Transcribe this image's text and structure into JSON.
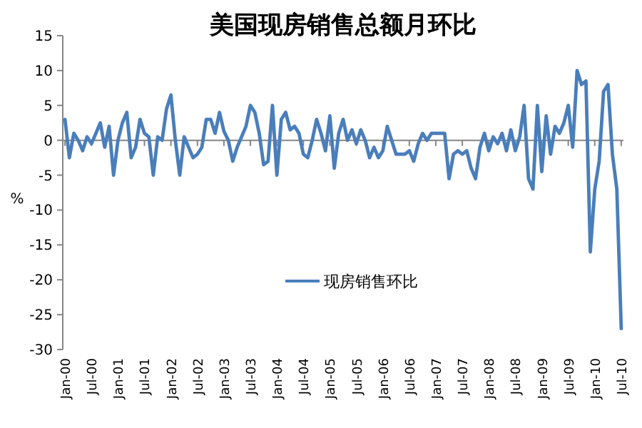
{
  "chart_data": {
    "type": "line",
    "title": "美国现房销售总额月环比",
    "ylabel": "%",
    "categories": [
      "Jan-00",
      null,
      null,
      null,
      null,
      null,
      "Jul-00",
      null,
      null,
      null,
      null,
      null,
      "Jan-01",
      null,
      null,
      null,
      null,
      null,
      "Jul-01",
      null,
      null,
      null,
      null,
      null,
      "Jan-02",
      null,
      null,
      null,
      null,
      null,
      "Jul-02",
      null,
      null,
      null,
      null,
      null,
      "Jan-03",
      null,
      null,
      null,
      null,
      null,
      "Jul-03",
      null,
      null,
      null,
      null,
      null,
      "Jan-04",
      null,
      null,
      null,
      null,
      null,
      "Jul-04",
      null,
      null,
      null,
      null,
      null,
      "Jan-05",
      null,
      null,
      null,
      null,
      null,
      "Jul-05",
      null,
      null,
      null,
      null,
      null,
      "Jan-06",
      null,
      null,
      null,
      null,
      null,
      "Jul-06",
      null,
      null,
      null,
      null,
      null,
      "Jan-07",
      null,
      null,
      null,
      null,
      null,
      "Jul-07",
      null,
      null,
      null,
      null,
      null,
      "Jan-08",
      null,
      null,
      null,
      null,
      null,
      "Jul-08",
      null,
      null,
      null,
      null,
      null,
      "Jan-09",
      null,
      null,
      null,
      null,
      null,
      "Jul-09",
      null,
      null,
      null,
      null,
      null,
      "Jan-10",
      null,
      null,
      null,
      null,
      null,
      "Jul-10"
    ],
    "series": [
      {
        "name": "现房销售环比",
        "color": "#4a7ebb",
        "values": [
          3,
          -2.5,
          1,
          0,
          -1.5,
          0.5,
          -0.5,
          1,
          2.5,
          -1,
          2,
          -5,
          0,
          2.5,
          4,
          -2.5,
          -1,
          3,
          1,
          0.5,
          -5,
          0.5,
          0,
          4.5,
          6.5,
          0,
          -5,
          0.5,
          -1,
          -2.5,
          -2,
          -1,
          3,
          3,
          1,
          4,
          1.3,
          0,
          -3,
          -1,
          0.5,
          2,
          5,
          4,
          1,
          -3.5,
          -3,
          5,
          -5,
          3,
          4,
          1.5,
          2,
          1,
          -2,
          -2.5,
          0,
          3,
          1,
          -1.5,
          3.5,
          -4,
          1,
          3,
          0,
          1.5,
          -0.5,
          1.5,
          0,
          -2.5,
          -1,
          -2.5,
          -1.5,
          2,
          0,
          -2,
          -2,
          -2,
          -1.5,
          -3,
          -0.5,
          1,
          0,
          1,
          1,
          1,
          1,
          -5.5,
          -2,
          -1.5,
          -2,
          -1.5,
          -4,
          -5.5,
          -1,
          1,
          -1.5,
          0.5,
          -0.5,
          1,
          -1.5,
          1.5,
          -1.5,
          0.5,
          5,
          -5.5,
          -7,
          5,
          -4.5,
          3.5,
          -2,
          2,
          1,
          2.5,
          5,
          -1,
          10,
          8,
          8.5,
          -16,
          -7,
          -3,
          7,
          8,
          -2,
          -7,
          -27
        ]
      }
    ],
    "ylim": [
      -30,
      15
    ],
    "yticks": [
      -30,
      -25,
      -20,
      -15,
      -10,
      -5,
      0,
      5,
      10,
      15
    ],
    "legend": "center"
  }
}
